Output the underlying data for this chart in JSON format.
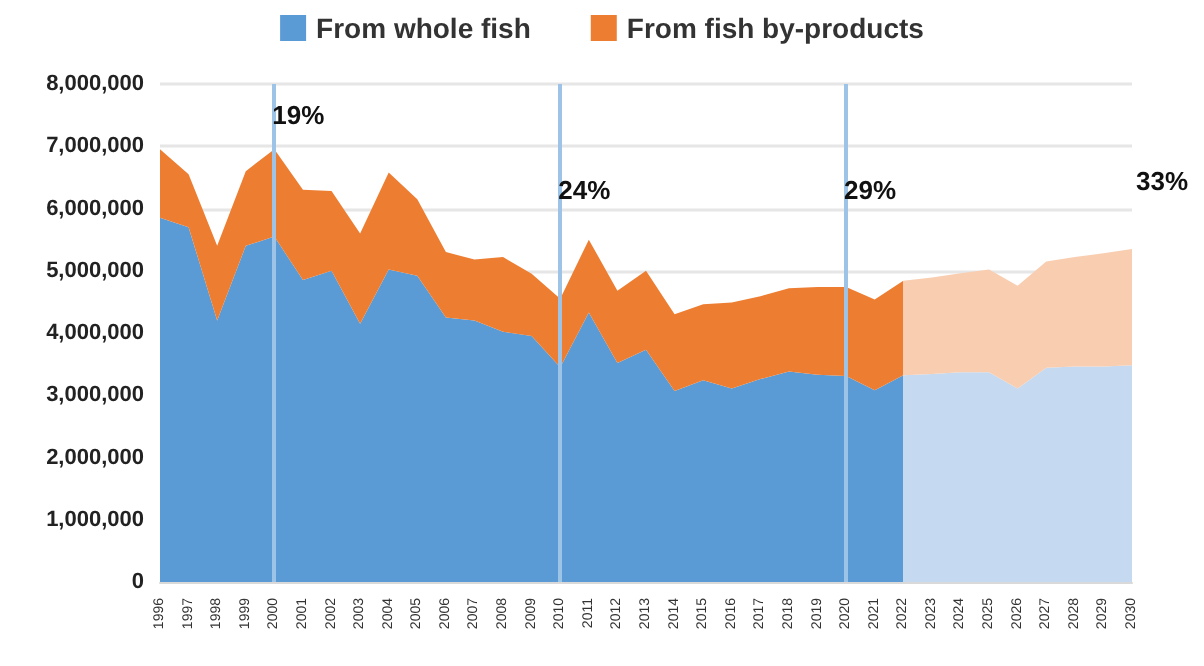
{
  "chart_data": {
    "type": "area",
    "stacked": true,
    "categories": [
      "1996",
      "1997",
      "1998",
      "1999",
      "2000",
      "2001",
      "2002",
      "2003",
      "2004",
      "2005",
      "2006",
      "2007",
      "2008",
      "2009",
      "2010",
      "2011",
      "2012",
      "2013",
      "2014",
      "2015",
      "2016",
      "2017",
      "2018",
      "2019",
      "2020",
      "2021",
      "2022",
      "2023",
      "2024",
      "2025",
      "2026",
      "2027",
      "2028",
      "2029",
      "2030"
    ],
    "series": [
      {
        "name": "From whole fish",
        "color": "#5b9bd5",
        "colors": [
          "#5b9bd5",
          "#5b9bd5",
          "#5b9bd5",
          "#5b9bd5",
          "#5b9bd5",
          "#5b9bd5",
          "#5b9bd5",
          "#5b9bd5",
          "#5b9bd5",
          "#5b9bd5",
          "#5b9bd5",
          "#5b9bd5",
          "#5b9bd5",
          "#5b9bd5",
          "#5b9bd5",
          "#5b9bd5",
          "#5b9bd5",
          "#5b9bd5",
          "#5b9bd5",
          "#5b9bd5",
          "#5b9bd5",
          "#5b9bd5",
          "#5b9bd5",
          "#5b9bd5",
          "#5b9bd5",
          "#5b9bd5",
          "#5b9bd5",
          "#c5daf0",
          "#c5daf0",
          "#c5daf0",
          "#c5daf0",
          "#c5daf0",
          "#c5daf0",
          "#c5daf0",
          "#c5daf0"
        ],
        "values": [
          5850000,
          5700000,
          4200000,
          5400000,
          5550000,
          4850000,
          5000000,
          4150000,
          5020000,
          4920000,
          4250000,
          4200000,
          4020000,
          3950000,
          3450000,
          4330000,
          3520000,
          3730000,
          3070000,
          3240000,
          3110000,
          3260000,
          3380000,
          3330000,
          3310000,
          3080000,
          3320000,
          3340000,
          3370000,
          3370000,
          3110000,
          3440000,
          3460000,
          3460000,
          3480000
        ]
      },
      {
        "name": "From fish by-products",
        "color": "#ed7d31",
        "colors": [
          "#ed7d31",
          "#ed7d31",
          "#ed7d31",
          "#ed7d31",
          "#ed7d31",
          "#ed7d31",
          "#ed7d31",
          "#ed7d31",
          "#ed7d31",
          "#ed7d31",
          "#ed7d31",
          "#ed7d31",
          "#ed7d31",
          "#ed7d31",
          "#ed7d31",
          "#ed7d31",
          "#ed7d31",
          "#ed7d31",
          "#ed7d31",
          "#ed7d31",
          "#ed7d31",
          "#ed7d31",
          "#ed7d31",
          "#ed7d31",
          "#ed7d31",
          "#ed7d31",
          "#ed7d31",
          "#f8cdb0",
          "#f8cdb0",
          "#f8cdb0",
          "#f8cdb0",
          "#f8cdb0",
          "#f8cdb0",
          "#f8cdb0",
          "#f8cdb0"
        ],
        "values": [
          1100000,
          850000,
          1200000,
          1200000,
          1400000,
          1450000,
          1280000,
          1450000,
          1560000,
          1230000,
          1050000,
          980000,
          1200000,
          1000000,
          1100000,
          1170000,
          1160000,
          1270000,
          1230000,
          1220000,
          1380000,
          1330000,
          1340000,
          1410000,
          1430000,
          1460000,
          1520000,
          1550000,
          1590000,
          1650000,
          1650000,
          1710000,
          1760000,
          1820000,
          1870000
        ]
      }
    ],
    "ylim": [
      0,
      8000000
    ],
    "yticks": [
      0,
      {
        "value": 1000000,
        "label": "1,000,000"
      },
      {
        "value": 2000000,
        "label": "2,000,000"
      },
      {
        "value": 3000000,
        "label": "3,000,000"
      },
      {
        "value": 4000000,
        "label": "4,000,000"
      },
      {
        "value": 5000000,
        "label": "5,000,000"
      },
      {
        "value": 6000000,
        "label": "6,000,000"
      },
      {
        "value": 7000000,
        "label": "7,000,000"
      },
      {
        "value": 8000000,
        "label": "8,000,000"
      }
    ],
    "grid": "y",
    "legend": "top",
    "ref_lines": [
      {
        "axis": "x",
        "value": "2000",
        "color": "#9dc3e6"
      },
      {
        "axis": "x",
        "value": "2010",
        "color": "#9dc3e6"
      },
      {
        "axis": "x",
        "value": "2020",
        "color": "#9dc3e6"
      }
    ],
    "annotations": [
      {
        "text": "19%",
        "x": "2000",
        "y": 7500000
      },
      {
        "text": "24%",
        "x": "2010",
        "y": 6300000
      },
      {
        "text": "29%",
        "x": "2020",
        "y": 6300000
      },
      "33%"
    ]
  }
}
